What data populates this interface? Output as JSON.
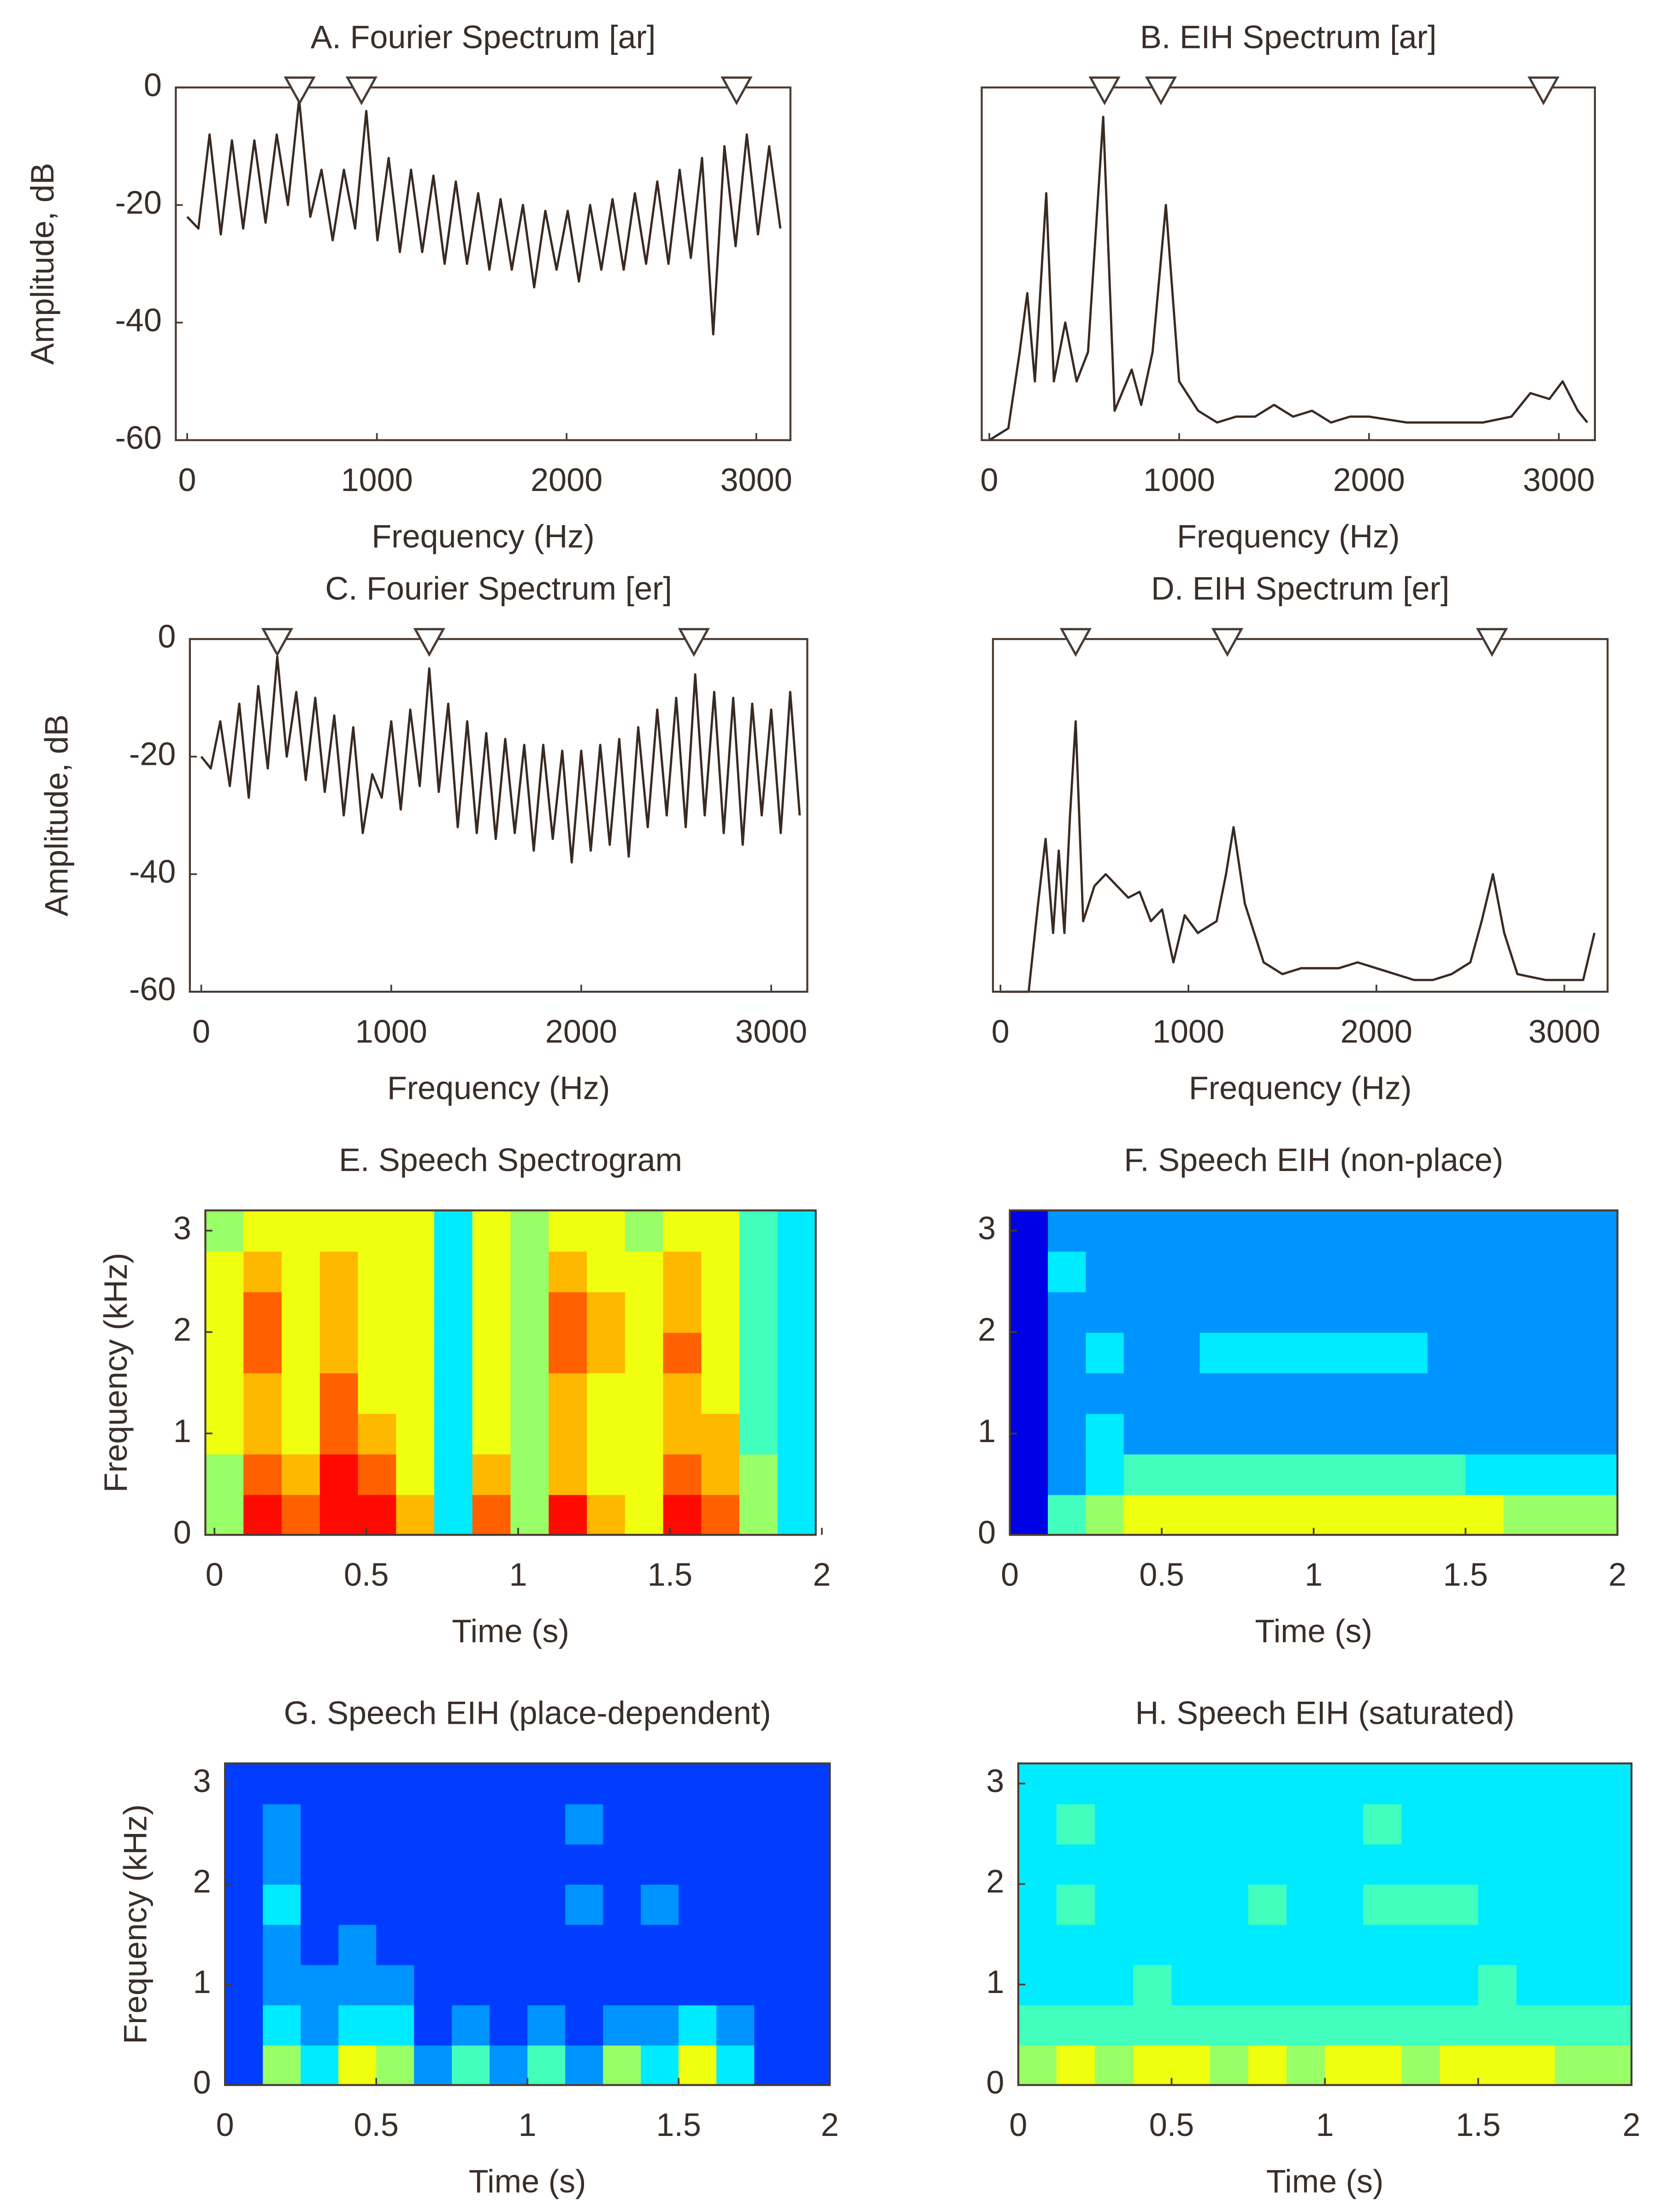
{
  "chart_data": [
    {
      "type": "line",
      "title": "A. Fourier Spectrum [ar]",
      "xlabel": "Frequency (Hz)",
      "ylabel": "Amplitude, dB",
      "color": "#3a2a20",
      "x": [
        0,
        59,
        118,
        177,
        236,
        295,
        354,
        413,
        472,
        531,
        590,
        649,
        708,
        767,
        826,
        885,
        944,
        1003,
        1062,
        1121,
        1180,
        1239,
        1298,
        1357,
        1416,
        1475,
        1534,
        1593,
        1652,
        1711,
        1770,
        1829,
        1888,
        1947,
        2006,
        2065,
        2124,
        2183,
        2242,
        2301,
        2360,
        2419,
        2478,
        2537,
        2596,
        2655,
        2714,
        2773,
        2832,
        2891,
        2950,
        3009,
        3068,
        3127
      ],
      "values": [
        -22,
        -24,
        -8,
        -25,
        -9,
        -24,
        -9,
        -23,
        -8,
        -20,
        -2,
        -22,
        -14,
        -26,
        -14,
        -24,
        -4,
        -26,
        -12,
        -28,
        -14,
        -28,
        -15,
        -30,
        -16,
        -30,
        -18,
        -31,
        -19,
        -31,
        -20,
        -34,
        -21,
        -31,
        -21,
        -33,
        -20,
        -31,
        -19,
        -31,
        -18,
        -30,
        -16,
        -30,
        -14,
        -29,
        -12,
        -42,
        -10,
        -27,
        -8,
        -25,
        -10,
        -24
      ],
      "formants": [
        593,
        919,
        2896
      ],
      "xlim": [
        -60,
        3180
      ],
      "ylim": [
        -60,
        0
      ],
      "xticks": [
        0,
        1000,
        2000,
        3000
      ],
      "yticks": [
        -60,
        -40,
        -20,
        0
      ]
    },
    {
      "type": "line",
      "title": "B. EIH Spectrum [ar]",
      "xlabel": "Frequency (Hz)",
      "color": "#3a2a20",
      "x": [
        0,
        100,
        160,
        200,
        240,
        300,
        340,
        400,
        460,
        520,
        600,
        660,
        750,
        800,
        860,
        930,
        1000,
        1100,
        1200,
        1300,
        1400,
        1500,
        1600,
        1700,
        1800,
        1900,
        2000,
        2200,
        2400,
        2600,
        2750,
        2850,
        2950,
        3020,
        3100,
        3150
      ],
      "values": [
        -60,
        -58,
        -45,
        -35,
        -50,
        -18,
        -50,
        -40,
        -50,
        -45,
        -5,
        -55,
        -48,
        -54,
        -45,
        -20,
        -50,
        -55,
        -57,
        -56,
        -56,
        -54,
        -56,
        -55,
        -57,
        -56,
        -56,
        -57,
        -57,
        -57,
        -56,
        -52,
        -53,
        -50,
        -55,
        -57
      ],
      "formants": [
        607,
        904,
        2919
      ],
      "xlim": [
        -40,
        3190
      ],
      "ylim": [
        -60,
        0
      ],
      "xticks": [
        0,
        1000,
        2000,
        3000
      ]
    },
    {
      "type": "line",
      "title": "C. Fourier Spectrum [er]",
      "xlabel": "Frequency (Hz)",
      "ylabel": "Amplitude, dB",
      "color": "#3a2a20",
      "x": [
        0,
        50,
        100,
        150,
        200,
        250,
        300,
        350,
        400,
        450,
        500,
        550,
        600,
        650,
        700,
        750,
        800,
        850,
        900,
        950,
        1000,
        1050,
        1100,
        1150,
        1200,
        1250,
        1300,
        1350,
        1400,
        1450,
        1500,
        1550,
        1600,
        1650,
        1700,
        1750,
        1800,
        1850,
        1900,
        1950,
        2000,
        2050,
        2100,
        2150,
        2200,
        2250,
        2300,
        2350,
        2400,
        2450,
        2500,
        2550,
        2600,
        2650,
        2700,
        2750,
        2800,
        2850,
        2900,
        2950,
        3000,
        3050,
        3100,
        3150
      ],
      "values": [
        -20,
        -22,
        -14,
        -25,
        -11,
        -27,
        -8,
        -22,
        -3,
        -20,
        -9,
        -24,
        -10,
        -26,
        -13,
        -30,
        -15,
        -33,
        -23,
        -27,
        -14,
        -29,
        -12,
        -25,
        -5,
        -26,
        -11,
        -32,
        -14,
        -33,
        -16,
        -34,
        -17,
        -33,
        -18,
        -36,
        -18,
        -34,
        -19,
        -38,
        -19,
        -36,
        -18,
        -35,
        -17,
        -37,
        -15,
        -32,
        -12,
        -30,
        -10,
        -32,
        -6,
        -30,
        -9,
        -33,
        -10,
        -35,
        -11,
        -30,
        -12,
        -33,
        -9,
        -30
      ],
      "formants": [
        400,
        1200,
        2593
      ],
      "xlim": [
        -60,
        3190
      ],
      "ylim": [
        -60,
        0
      ],
      "xticks": [
        0,
        1000,
        2000,
        3000
      ],
      "yticks": [
        -60,
        -40,
        -20,
        0
      ]
    },
    {
      "type": "line",
      "title": "D. EIH Spectrum [er]",
      "xlabel": "Frequency (Hz)",
      "color": "#3a2a20",
      "x": [
        0,
        150,
        200,
        240,
        280,
        310,
        340,
        370,
        400,
        440,
        500,
        560,
        620,
        680,
        740,
        800,
        860,
        920,
        980,
        1050,
        1150,
        1200,
        1240,
        1300,
        1400,
        1500,
        1600,
        1700,
        1800,
        1900,
        2000,
        2100,
        2200,
        2300,
        2400,
        2500,
        2560,
        2620,
        2680,
        2750,
        2900,
        3100,
        3160
      ],
      "values": [
        -60,
        -60,
        -45,
        -34,
        -50,
        -36,
        -50,
        -30,
        -14,
        -48,
        -42,
        -40,
        -42,
        -44,
        -43,
        -48,
        -46,
        -55,
        -47,
        -50,
        -48,
        -40,
        -32,
        -45,
        -55,
        -57,
        -56,
        -56,
        -56,
        -55,
        -56,
        -57,
        -58,
        -58,
        -57,
        -55,
        -48,
        -40,
        -50,
        -57,
        -58,
        -58,
        -50
      ],
      "formants": [
        400,
        1207,
        2615
      ],
      "xlim": [
        -40,
        3230
      ],
      "ylim": [
        -60,
        0
      ],
      "xticks": [
        0,
        1000,
        2000,
        3000
      ]
    },
    {
      "type": "heatmap",
      "title": "E. Speech Spectrogram",
      "xlabel": "Time (s)",
      "ylabel": "Frequency (kHz)",
      "colormap": "jet",
      "zlim": [
        0,
        10
      ],
      "z": [
        [
          5,
          9,
          8,
          9,
          9,
          7,
          3,
          8,
          5,
          9,
          7,
          6,
          9,
          8,
          5,
          3
        ],
        [
          5,
          8,
          7,
          9,
          8,
          6,
          3,
          7,
          5,
          7,
          6,
          6,
          8,
          7,
          5,
          3
        ],
        [
          6,
          7,
          6,
          8,
          7,
          6,
          3,
          6,
          5,
          7,
          6,
          6,
          7,
          7,
          4,
          3
        ],
        [
          6,
          7,
          6,
          8,
          6,
          6,
          3,
          6,
          5,
          7,
          6,
          6,
          7,
          6,
          4,
          3
        ],
        [
          6,
          8,
          6,
          7,
          6,
          6,
          3,
          6,
          5,
          8,
          7,
          6,
          8,
          6,
          4,
          3
        ],
        [
          6,
          8,
          6,
          7,
          6,
          6,
          3,
          6,
          5,
          8,
          7,
          6,
          7,
          6,
          4,
          3
        ],
        [
          6,
          7,
          6,
          7,
          6,
          6,
          3,
          6,
          5,
          7,
          6,
          6,
          7,
          6,
          4,
          3
        ],
        [
          5,
          6,
          6,
          6,
          6,
          6,
          3,
          6,
          5,
          6,
          6,
          5,
          6,
          6,
          4,
          3
        ]
      ],
      "xlim": [
        -0.03,
        1.98
      ],
      "ylim": [
        0,
        3.2
      ],
      "xticks": [
        0,
        0.5,
        1,
        1.5,
        2
      ],
      "yticks": [
        0,
        1,
        2,
        3
      ]
    },
    {
      "type": "heatmap",
      "title": "F. Speech EIH (non-place)",
      "xlabel": "Time (s)",
      "colormap": "jet",
      "zlim": [
        0,
        10
      ],
      "z": [
        [
          0,
          4,
          5,
          6,
          6,
          6,
          6,
          6,
          6,
          6,
          6,
          6,
          6,
          5,
          5,
          5
        ],
        [
          0,
          2,
          3,
          4,
          4,
          4,
          4,
          4,
          4,
          4,
          4,
          4,
          3,
          3,
          3,
          3
        ],
        [
          0,
          2,
          3,
          2,
          2,
          2,
          2,
          2,
          2,
          2,
          2,
          2,
          2,
          2,
          2,
          2
        ],
        [
          0,
          2,
          2,
          2,
          2,
          2,
          2,
          2,
          2,
          2,
          2,
          2,
          2,
          2,
          2,
          2
        ],
        [
          0,
          2,
          3,
          2,
          2,
          3,
          3,
          3,
          3,
          3,
          3,
          2,
          2,
          2,
          2,
          2
        ],
        [
          0,
          2,
          2,
          2,
          2,
          2,
          2,
          2,
          2,
          2,
          2,
          2,
          2,
          2,
          2,
          2
        ],
        [
          0,
          3,
          2,
          2,
          2,
          2,
          2,
          2,
          2,
          2,
          2,
          2,
          2,
          2,
          2,
          2
        ],
        [
          0,
          2,
          2,
          2,
          2,
          2,
          2,
          2,
          2,
          2,
          2,
          2,
          2,
          2,
          2,
          2
        ]
      ],
      "xlim": [
        0,
        2
      ],
      "ylim": [
        0,
        3.2
      ],
      "xticks": [
        0,
        0.5,
        1,
        1.5,
        2
      ],
      "yticks": [
        0,
        1,
        2,
        3
      ]
    },
    {
      "type": "heatmap",
      "title": "G. Speech EIH (place-dependent)",
      "xlabel": "Time (s)",
      "ylabel": "Frequency (kHz)",
      "colormap": "jet",
      "zlim": [
        0,
        10
      ],
      "z": [
        [
          1,
          5,
          3,
          6,
          5,
          2,
          4,
          2,
          4,
          2,
          5,
          3,
          6,
          3,
          1,
          1
        ],
        [
          1,
          3,
          2,
          3,
          3,
          1,
          2,
          1,
          2,
          1,
          2,
          2,
          3,
          2,
          1,
          1
        ],
        [
          1,
          2,
          2,
          2,
          2,
          1,
          1,
          1,
          1,
          1,
          1,
          1,
          1,
          1,
          1,
          1
        ],
        [
          1,
          2,
          1,
          2,
          1,
          1,
          1,
          1,
          1,
          1,
          1,
          1,
          1,
          1,
          1,
          1
        ],
        [
          1,
          3,
          1,
          1,
          1,
          1,
          1,
          1,
          1,
          2,
          1,
          2,
          1,
          1,
          1,
          1
        ],
        [
          1,
          2,
          1,
          1,
          1,
          1,
          1,
          1,
          1,
          1,
          1,
          1,
          1,
          1,
          1,
          1
        ],
        [
          1,
          2,
          1,
          1,
          1,
          1,
          1,
          1,
          1,
          2,
          1,
          1,
          1,
          1,
          1,
          1
        ],
        [
          1,
          1,
          1,
          1,
          1,
          1,
          1,
          1,
          1,
          1,
          1,
          1,
          1,
          1,
          1,
          1
        ]
      ],
      "xlim": [
        0,
        2
      ],
      "ylim": [
        0,
        3.2
      ],
      "xticks": [
        0,
        0.5,
        1,
        1.5,
        2
      ],
      "yticks": [
        0,
        1,
        2,
        3
      ]
    },
    {
      "type": "heatmap",
      "title": "H. Speech EIH (saturated)",
      "xlabel": "Time (s)",
      "colormap": "jet",
      "zlim": [
        0,
        10
      ],
      "z": [
        [
          5,
          6,
          5,
          6,
          6,
          5,
          6,
          5,
          6,
          6,
          5,
          6,
          6,
          6,
          5,
          5
        ],
        [
          4,
          4,
          4,
          4,
          4,
          4,
          4,
          4,
          4,
          4,
          4,
          4,
          4,
          4,
          4,
          4
        ],
        [
          3,
          3,
          3,
          4,
          3,
          3,
          3,
          3,
          3,
          3,
          3,
          3,
          4,
          3,
          3,
          3
        ],
        [
          3,
          3,
          3,
          3,
          3,
          3,
          3,
          3,
          3,
          3,
          3,
          3,
          3,
          3,
          3,
          3
        ],
        [
          3,
          4,
          3,
          3,
          3,
          3,
          4,
          3,
          3,
          4,
          4,
          4,
          3,
          3,
          3,
          3
        ],
        [
          3,
          3,
          3,
          3,
          3,
          3,
          3,
          3,
          3,
          3,
          3,
          3,
          3,
          3,
          3,
          3
        ],
        [
          3,
          4,
          3,
          3,
          3,
          3,
          3,
          3,
          3,
          4,
          3,
          3,
          3,
          3,
          3,
          3
        ],
        [
          3,
          3,
          3,
          3,
          3,
          3,
          3,
          3,
          3,
          3,
          3,
          3,
          3,
          3,
          3,
          3
        ]
      ],
      "xlim": [
        0,
        2
      ],
      "ylim": [
        0,
        3.2
      ],
      "xticks": [
        0,
        0.5,
        1,
        1.5,
        2
      ],
      "yticks": [
        0,
        1,
        2,
        3
      ]
    }
  ]
}
